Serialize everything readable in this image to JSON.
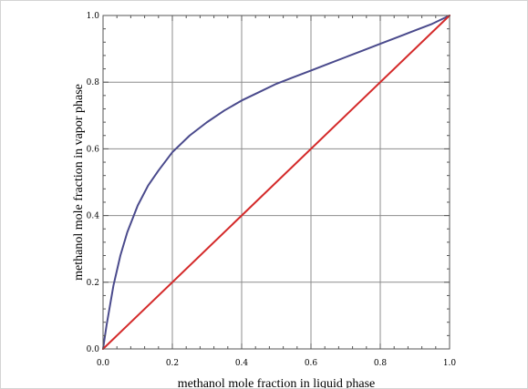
{
  "chart_data": {
    "type": "line",
    "title": "",
    "xlabel": "methanol mole fraction in liquid phase",
    "ylabel": "methanol mole fraction in vapor phase",
    "xlim": [
      0,
      1
    ],
    "ylim": [
      0,
      1
    ],
    "grid": true,
    "legend": "none",
    "x_ticks": [
      "0.0",
      "0.2",
      "0.4",
      "0.6",
      "0.8",
      "1.0"
    ],
    "y_ticks": [
      "0.0",
      "0.2",
      "0.4",
      "0.6",
      "0.8",
      "1.0"
    ],
    "x_tick_values": [
      0,
      0.2,
      0.4,
      0.6,
      0.8,
      1.0
    ],
    "y_tick_values": [
      0,
      0.2,
      0.4,
      0.6,
      0.8,
      1.0
    ],
    "series": [
      {
        "color": "#4a4a8c",
        "x": [
          0,
          0.01,
          0.02,
          0.03,
          0.05,
          0.07,
          0.1,
          0.13,
          0.16,
          0.2,
          0.25,
          0.3,
          0.35,
          0.4,
          0.45,
          0.5,
          0.55,
          0.6,
          0.65,
          0.7,
          0.75,
          0.8,
          0.85,
          0.9,
          0.95,
          1.0
        ],
        "values": [
          0,
          0.07,
          0.13,
          0.19,
          0.28,
          0.35,
          0.43,
          0.49,
          0.535,
          0.59,
          0.64,
          0.68,
          0.715,
          0.745,
          0.77,
          0.795,
          0.815,
          0.835,
          0.855,
          0.875,
          0.895,
          0.915,
          0.935,
          0.955,
          0.975,
          1.0
        ]
      },
      {
        "color": "#d42a2a",
        "x": [
          0,
          1
        ],
        "values": [
          0,
          1
        ]
      }
    ]
  }
}
